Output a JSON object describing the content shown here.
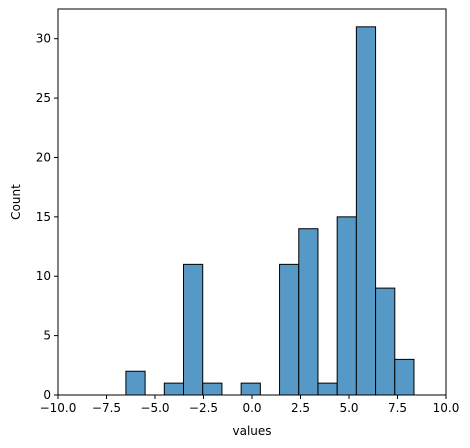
{
  "chart_data": {
    "type": "bar",
    "title": "",
    "xlabel": "values",
    "ylabel": "Count",
    "xlim": [
      -10,
      10
    ],
    "ylim": [
      0,
      32.5
    ],
    "xticks": [
      -10,
      -7.5,
      -5,
      -2.5,
      0,
      2.5,
      5,
      7.5,
      10
    ],
    "xtick_labels": [
      "−10.0",
      "−7.5",
      "−5.0",
      "−2.5",
      "0.0",
      "2.5",
      "5.0",
      "7.5",
      "10.0"
    ],
    "yticks": [
      0,
      5,
      10,
      15,
      20,
      25,
      30
    ],
    "ytick_labels": [
      "0",
      "5",
      "10",
      "15",
      "20",
      "25",
      "30"
    ],
    "bar_color": "#5799c6",
    "edge_color": "#000000",
    "grid": false,
    "bins": [
      {
        "x0": -6.5,
        "x1": -5.51,
        "count": 2
      },
      {
        "x0": -4.52,
        "x1": -3.53,
        "count": 1
      },
      {
        "x0": -3.53,
        "x1": -2.54,
        "count": 11
      },
      {
        "x0": -2.54,
        "x1": -1.55,
        "count": 1
      },
      {
        "x0": -0.56,
        "x1": 0.43,
        "count": 1
      },
      {
        "x0": 1.42,
        "x1": 2.41,
        "count": 11
      },
      {
        "x0": 2.41,
        "x1": 3.4,
        "count": 14
      },
      {
        "x0": 3.4,
        "x1": 4.39,
        "count": 1
      },
      {
        "x0": 4.39,
        "x1": 5.38,
        "count": 15
      },
      {
        "x0": 5.38,
        "x1": 6.37,
        "count": 31
      },
      {
        "x0": 6.37,
        "x1": 7.36,
        "count": 9
      },
      {
        "x0": 7.36,
        "x1": 8.35,
        "count": 3
      }
    ]
  }
}
